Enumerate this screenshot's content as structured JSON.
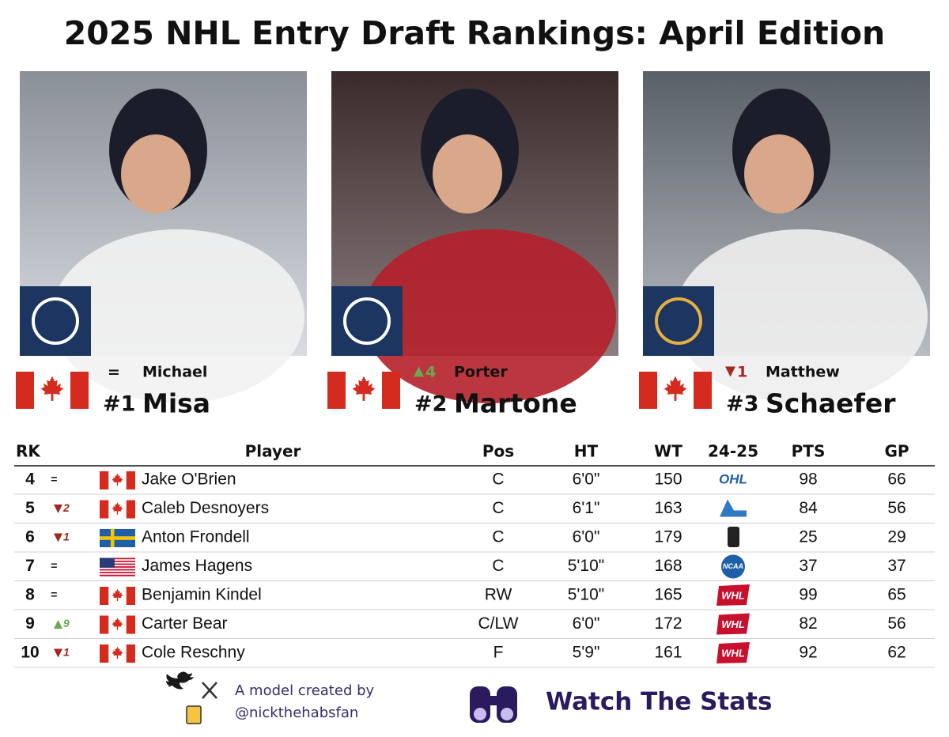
{
  "title": "2025 NHL Entry Draft Rankings: April Edition",
  "top": [
    {
      "rank": "#1",
      "first": "Michael",
      "last": "Misa",
      "change": "=",
      "trend": "same",
      "flag": "CAN"
    },
    {
      "rank": "#2",
      "first": "Porter",
      "last": "Martone",
      "change": "4",
      "trend": "up",
      "flag": "CAN"
    },
    {
      "rank": "#3",
      "first": "Matthew",
      "last": "Schaefer",
      "change": "1",
      "trend": "down",
      "flag": "CAN"
    }
  ],
  "table": {
    "header": [
      "RK",
      "Player",
      "Pos",
      "HT",
      "WT",
      "24-25",
      "PTS",
      "GP"
    ],
    "rows": [
      {
        "rank": 4,
        "change": "=",
        "trend": "same",
        "flag": "CAN",
        "player": "Jake O'Brien",
        "pos": "C",
        "ht": "6'0\"",
        "wt": 150,
        "league": "OHL",
        "pts": 98,
        "gp": 66
      },
      {
        "rank": 5,
        "change": "2",
        "trend": "down",
        "flag": "CAN",
        "player": "Caleb Desnoyers",
        "pos": "C",
        "ht": "6'1\"",
        "wt": 163,
        "league": null,
        "pts": 84,
        "gp": 56
      },
      {
        "rank": 6,
        "change": "1",
        "trend": "down",
        "flag": "SWE",
        "player": "Anton Frondell",
        "pos": "C",
        "ht": "6'0\"",
        "wt": 179,
        "league": null,
        "pts": 25,
        "gp": 29
      },
      {
        "rank": 7,
        "change": "=",
        "trend": "same",
        "flag": "USA",
        "player": "James Hagens",
        "pos": "C",
        "ht": "5'10\"",
        "wt": 168,
        "league": "NCAA",
        "pts": 37,
        "gp": 37
      },
      {
        "rank": 8,
        "change": "=",
        "trend": "same",
        "flag": "CAN",
        "player": "Benjamin Kindel",
        "pos": "RW",
        "ht": "5'10\"",
        "wt": 165,
        "league": "WHL",
        "pts": 99,
        "gp": 65
      },
      {
        "rank": 9,
        "change": "9",
        "trend": "up",
        "flag": "CAN",
        "player": "Carter Bear",
        "pos": "C/LW",
        "ht": "6'0\"",
        "wt": 172,
        "league": "WHL",
        "pts": 82,
        "gp": 56
      },
      {
        "rank": 10,
        "change": "1",
        "trend": "down",
        "flag": "CAN",
        "player": "Cole Reschny",
        "pos": "F",
        "ht": "5'9\"",
        "wt": 161,
        "league": "WHL",
        "pts": 92,
        "gp": 62
      }
    ]
  },
  "footer": {
    "credit": "A model created by",
    "handle": "@nickthehabsfan",
    "brand": "Watch The Stats"
  }
}
